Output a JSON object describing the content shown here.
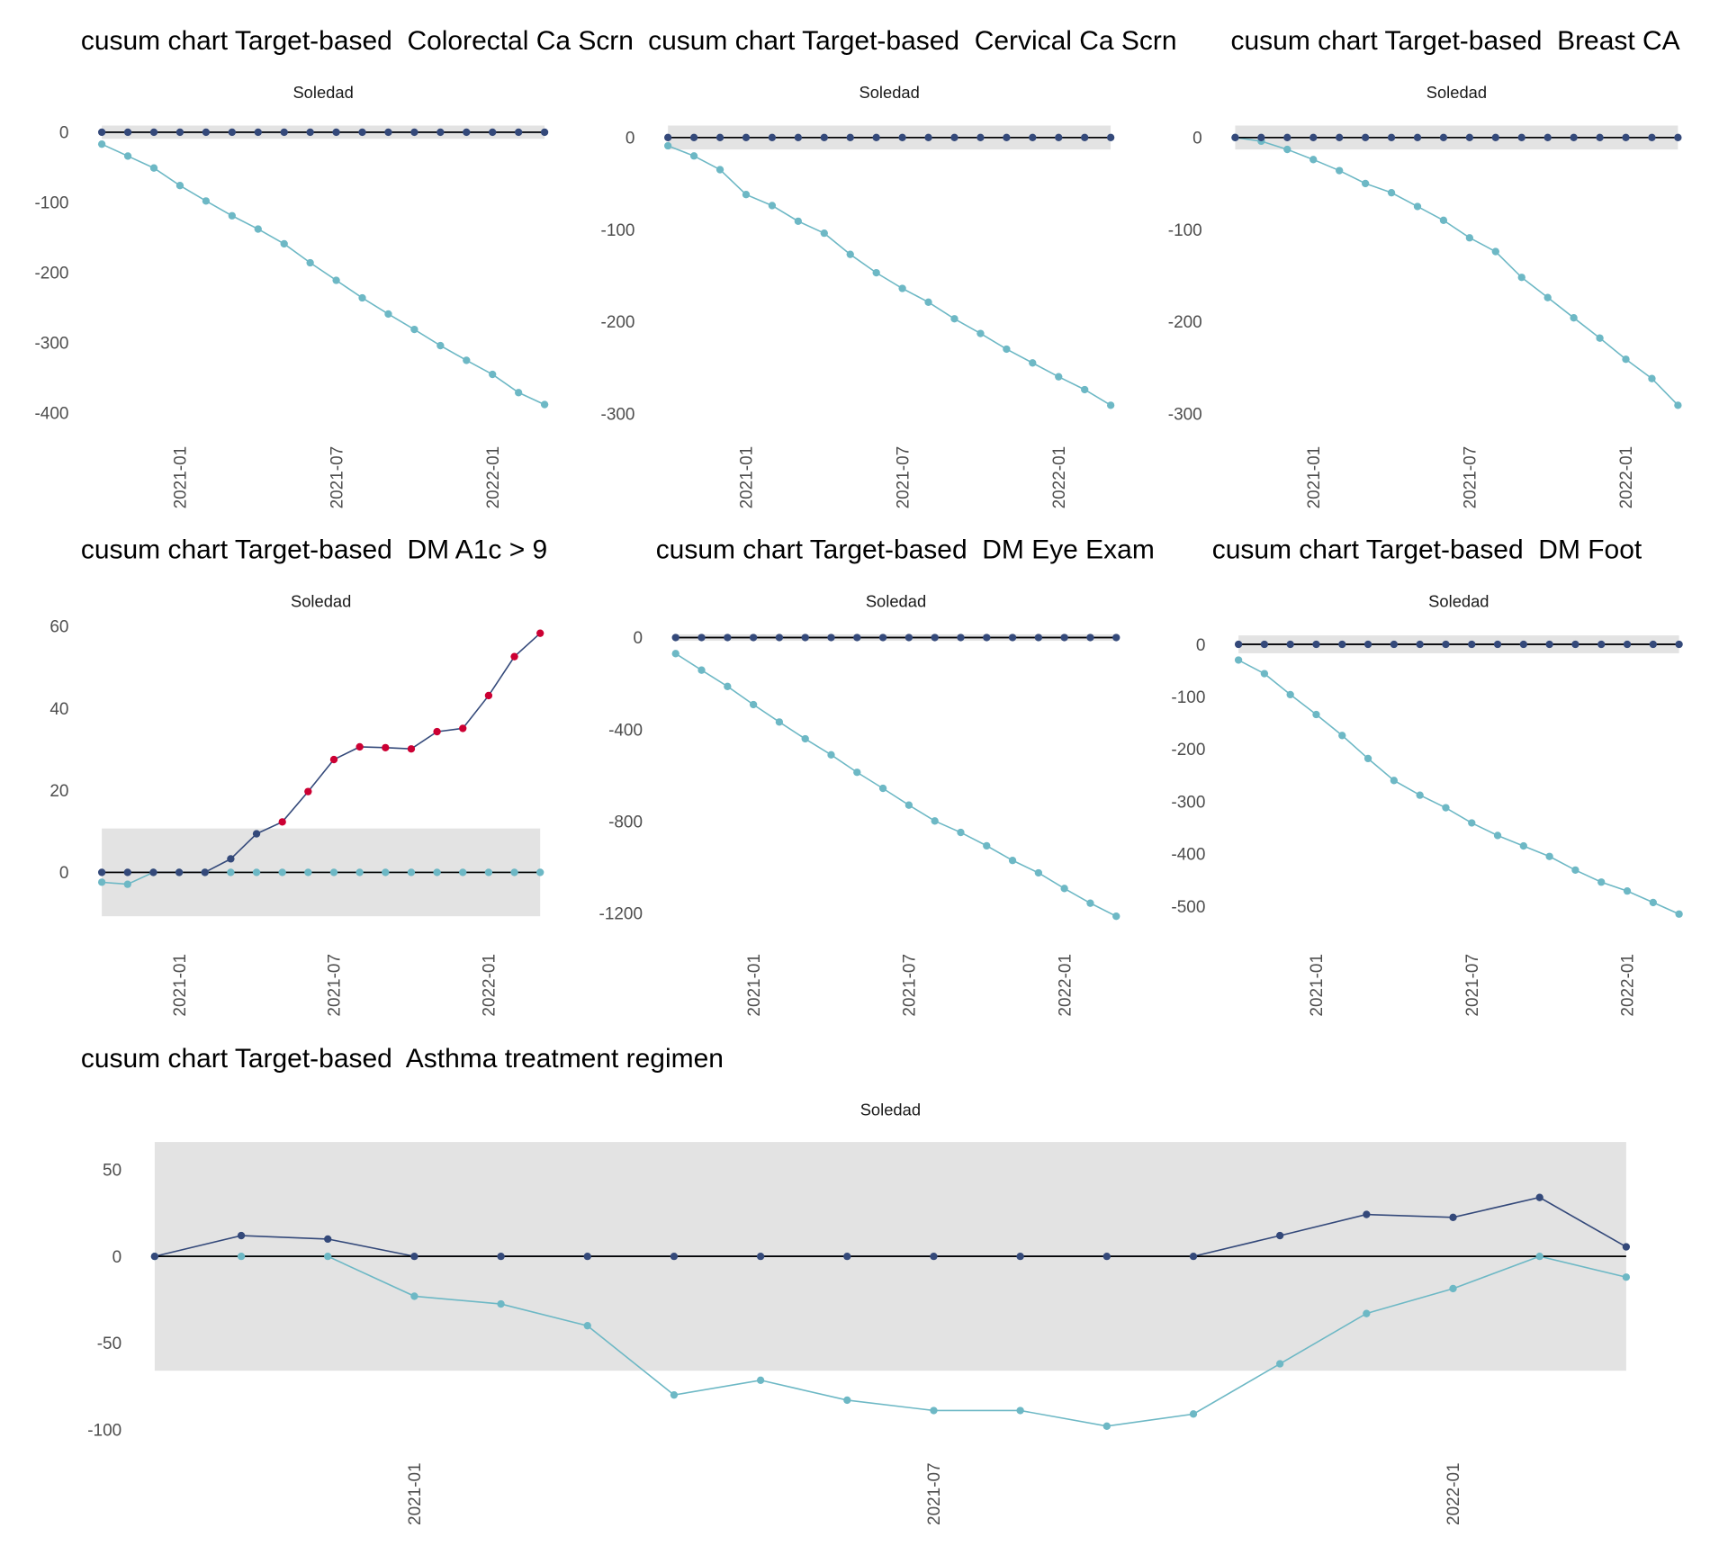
{
  "colors": {
    "upper": "#34497a",
    "lower": "#6db8c5",
    "signal": "#cc0033",
    "band": "#e3e3e3",
    "center": "#000000"
  },
  "chart_data": [
    {
      "type": "line",
      "title": "cusum chart Target-based  Colorectal Ca Scrn",
      "facet": "Soledad",
      "x": [
        "2020-10",
        "2020-11",
        "2020-12",
        "2021-01",
        "2021-02",
        "2021-03",
        "2021-04",
        "2021-05",
        "2021-06",
        "2021-07",
        "2021-08",
        "2021-09",
        "2021-10",
        "2021-11",
        "2021-12",
        "2022-01",
        "2022-02",
        "2022-03"
      ],
      "xticks": [
        "2021-01",
        "2021-07",
        "2022-01"
      ],
      "yticks": [
        0,
        -100,
        -200,
        -300,
        -400
      ],
      "ylim": [
        -389,
        9.5
      ],
      "decision_limit": 9.5,
      "series": [
        {
          "values": [
            0,
            0,
            0,
            0,
            0,
            0,
            0,
            0,
            0,
            0,
            0,
            0,
            0,
            0,
            0,
            0,
            0,
            0
          ]
        },
        {
          "values": [
            -17,
            -34,
            -51,
            -76,
            -98,
            -119,
            -138,
            -159,
            -186,
            -211,
            -236,
            -259,
            -281,
            -304,
            -325,
            -345,
            -371,
            -388
          ]
        }
      ]
    },
    {
      "type": "line",
      "title": "cusum chart Target-based  Cervical Ca Scrn",
      "facet": "Soledad",
      "x": [
        "2020-10",
        "2020-11",
        "2020-12",
        "2021-01",
        "2021-02",
        "2021-03",
        "2021-04",
        "2021-05",
        "2021-06",
        "2021-07",
        "2021-08",
        "2021-09",
        "2021-10",
        "2021-11",
        "2021-12",
        "2022-01",
        "2022-02",
        "2022-03"
      ],
      "xticks": [
        "2021-01",
        "2021-07",
        "2022-01"
      ],
      "yticks": [
        0,
        -100,
        -200,
        -300
      ],
      "ylim": [
        -291,
        13
      ],
      "decision_limit": 13,
      "series": [
        {
          "values": [
            0,
            0,
            0,
            0,
            0,
            0,
            0,
            0,
            0,
            0,
            0,
            0,
            0,
            0,
            0,
            0,
            0,
            0
          ]
        },
        {
          "values": [
            -9,
            -20,
            -35,
            -62,
            -74,
            -91,
            -104,
            -127,
            -147,
            -164,
            -179,
            -197,
            -213,
            -230,
            -245,
            -260,
            -274,
            -291
          ]
        }
      ]
    },
    {
      "type": "line",
      "title": "cusum chart Target-based  Breast CA",
      "facet": "Soledad",
      "x": [
        "2020-10",
        "2020-11",
        "2020-12",
        "2021-01",
        "2021-02",
        "2021-03",
        "2021-04",
        "2021-05",
        "2021-06",
        "2021-07",
        "2021-08",
        "2021-09",
        "2021-10",
        "2021-11",
        "2021-12",
        "2022-01",
        "2022-02",
        "2022-03"
      ],
      "xticks": [
        "2021-01",
        "2021-07",
        "2022-01"
      ],
      "yticks": [
        0,
        -100,
        -200,
        -300
      ],
      "ylim": [
        -291,
        13
      ],
      "decision_limit": 13,
      "series": [
        {
          "values": [
            0,
            0,
            0,
            0,
            0,
            0,
            0,
            0,
            0,
            0,
            0,
            0,
            0,
            0,
            0,
            0,
            0,
            0
          ]
        },
        {
          "values": [
            0,
            -4,
            -13,
            -24,
            -36,
            -50,
            -60,
            -75,
            -90,
            -109,
            -124,
            -152,
            -174,
            -196,
            -218,
            -241,
            -262,
            -291
          ]
        }
      ]
    },
    {
      "type": "line",
      "title": "cusum chart Target-based  DM A1c > 9",
      "facet": "Soledad",
      "x": [
        "2020-10",
        "2020-11",
        "2020-12",
        "2021-01",
        "2021-02",
        "2021-03",
        "2021-04",
        "2021-05",
        "2021-06",
        "2021-07",
        "2021-08",
        "2021-09",
        "2021-10",
        "2021-11",
        "2021-12",
        "2022-01",
        "2022-02",
        "2022-03"
      ],
      "xticks": [
        "2021-01",
        "2021-07",
        "2022-01"
      ],
      "yticks": [
        0,
        20,
        40,
        60
      ],
      "ylim": [
        -10.7,
        58.3
      ],
      "decision_limit": 10.7,
      "series": [
        {
          "values": [
            0,
            0,
            0,
            0,
            0,
            3.3,
            9.4,
            12.3,
            19.7,
            27.5,
            30.6,
            30.4,
            30.1,
            34.3,
            35.1,
            43.1,
            52.6,
            58.3
          ]
        },
        {
          "values": [
            -2.4,
            -2.9,
            0,
            0,
            0,
            0,
            0,
            0,
            0,
            0,
            0,
            0,
            0,
            0,
            0,
            0,
            0,
            0
          ]
        }
      ]
    },
    {
      "type": "line",
      "title": "cusum chart Target-based  DM Eye Exam",
      "facet": "Soledad",
      "x": [
        "2020-10",
        "2020-11",
        "2020-12",
        "2021-01",
        "2021-02",
        "2021-03",
        "2021-04",
        "2021-05",
        "2021-06",
        "2021-07",
        "2021-08",
        "2021-09",
        "2021-10",
        "2021-11",
        "2021-12",
        "2022-01",
        "2022-02",
        "2022-03"
      ],
      "xticks": [
        "2021-01",
        "2021-07",
        "2022-01"
      ],
      "yticks": [
        0,
        -400,
        -800,
        -1200
      ],
      "ylim": [
        -1214,
        14
      ],
      "decision_limit": 14,
      "series": [
        {
          "values": [
            0,
            0,
            0,
            0,
            0,
            0,
            0,
            0,
            0,
            0,
            0,
            0,
            0,
            0,
            0,
            0,
            0,
            0
          ]
        },
        {
          "values": [
            -70,
            -142,
            -213,
            -292,
            -368,
            -441,
            -511,
            -587,
            -657,
            -730,
            -799,
            -849,
            -907,
            -971,
            -1025,
            -1093,
            -1157,
            -1214
          ]
        }
      ]
    },
    {
      "type": "line",
      "title": "cusum chart Target-based  DM Foot",
      "facet": "Soledad",
      "x": [
        "2020-10",
        "2020-11",
        "2020-12",
        "2021-01",
        "2021-02",
        "2021-03",
        "2021-04",
        "2021-05",
        "2021-06",
        "2021-07",
        "2021-08",
        "2021-09",
        "2021-10",
        "2021-11",
        "2021-12",
        "2022-01",
        "2022-02",
        "2022-03"
      ],
      "xticks": [
        "2021-01",
        "2021-07",
        "2022-01"
      ],
      "yticks": [
        0,
        -100,
        -200,
        -300,
        -400,
        -500
      ],
      "ylim": [
        -515,
        17
      ],
      "decision_limit": 17,
      "series": [
        {
          "values": [
            0,
            0,
            0,
            0,
            0,
            0,
            0,
            0,
            0,
            0,
            0,
            0,
            0,
            0,
            0,
            0,
            0,
            0
          ]
        },
        {
          "values": [
            -30,
            -56,
            -96,
            -134,
            -174,
            -218,
            -260,
            -288,
            -312,
            -341,
            -365,
            -385,
            -405,
            -431,
            -454,
            -471,
            -493,
            -515
          ]
        }
      ]
    },
    {
      "type": "line",
      "title": "cusum chart Target-based  Asthma treatment regimen",
      "facet": "Soledad",
      "x": [
        "2020-10",
        "2020-11",
        "2020-12",
        "2021-01",
        "2021-02",
        "2021-03",
        "2021-04",
        "2021-05",
        "2021-06",
        "2021-07",
        "2021-08",
        "2021-09",
        "2021-10",
        "2021-11",
        "2021-12",
        "2022-01",
        "2022-02",
        "2022-03"
      ],
      "xticks": [
        "2021-01",
        "2021-07",
        "2022-01"
      ],
      "yticks": [
        50,
        0,
        -50,
        -100
      ],
      "ylim": [
        -98,
        66
      ],
      "decision_limit": 66,
      "series": [
        {
          "values": [
            0,
            12,
            10,
            0,
            0,
            0,
            0,
            0,
            0,
            0,
            0,
            0,
            0,
            12,
            24.2,
            22.5,
            34,
            5.5
          ]
        },
        {
          "values": [
            0,
            0,
            0,
            -23,
            -27.5,
            -40,
            -80,
            -71.5,
            -83,
            -89,
            -89,
            -98,
            -91,
            -62,
            -33,
            -18.6,
            0,
            -12
          ]
        }
      ]
    }
  ]
}
